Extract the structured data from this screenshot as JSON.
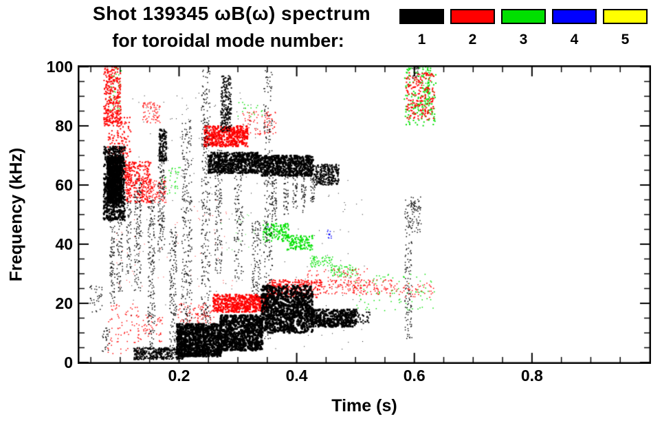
{
  "header": {
    "title_line1": "Shot 139345 ωB(ω) spectrum",
    "title_line2": "for toroidal mode number:"
  },
  "legend": {
    "position": "top-right",
    "items": [
      {
        "label": "1",
        "color": "#000000"
      },
      {
        "label": "2",
        "color": "#ff0000"
      },
      {
        "label": "3",
        "color": "#00e000"
      },
      {
        "label": "4",
        "color": "#0000ff"
      },
      {
        "label": "5",
        "color": "#ffff00"
      }
    ]
  },
  "chart_data": {
    "type": "scatter",
    "subtype": "mode-spectrogram",
    "title": "Shot 139345 ωB(ω) spectrum for toroidal mode number: 1-5",
    "xlabel": "Time (s)",
    "ylabel": "Frequency (kHz)",
    "xlim": [
      0.03,
      1.0
    ],
    "ylim": [
      0,
      100
    ],
    "xticks": [
      0.2,
      0.4,
      0.6,
      0.8
    ],
    "xtick_labels": [
      "0.2",
      "0.4",
      "0.6",
      "0.8"
    ],
    "yticks": [
      0,
      20,
      40,
      60,
      80,
      100
    ],
    "ytick_labels": [
      "0",
      "20",
      "40",
      "60",
      "80",
      "100"
    ],
    "xminor": 0.05,
    "yminor": 5,
    "grid": false,
    "cluster_format": [
      "t_min_s",
      "t_max_s",
      "f_min_kHz",
      "f_max_kHz",
      "n_points",
      "point_size_px"
    ],
    "series": [
      {
        "name": "n=1",
        "mode": 1,
        "color": "#000000",
        "clusters": [
          [
            0.072,
            0.108,
            48,
            73,
            700,
            2.5
          ],
          [
            0.078,
            0.102,
            54,
            70,
            600,
            3
          ],
          [
            0.082,
            0.091,
            20,
            50,
            90,
            1.5
          ],
          [
            0.094,
            0.104,
            24,
            50,
            70,
            1.5
          ],
          [
            0.111,
            0.119,
            30,
            56,
            60,
            1.5
          ],
          [
            0.124,
            0.136,
            24,
            62,
            130,
            1.5
          ],
          [
            0.147,
            0.159,
            5,
            56,
            170,
            1.5
          ],
          [
            0.164,
            0.176,
            36,
            70,
            140,
            1.5
          ],
          [
            0.166,
            0.179,
            68,
            79,
            170,
            2
          ],
          [
            0.184,
            0.196,
            4,
            46,
            150,
            1.5
          ],
          [
            0.204,
            0.222,
            3,
            82,
            280,
            1.5
          ],
          [
            0.238,
            0.253,
            5,
            100,
            300,
            1.5
          ],
          [
            0.261,
            0.273,
            30,
            72,
            130,
            1.5
          ],
          [
            0.271,
            0.289,
            78,
            97,
            200,
            2
          ],
          [
            0.294,
            0.309,
            28,
            70,
            120,
            1.5
          ],
          [
            0.324,
            0.339,
            22,
            48,
            100,
            1.5
          ],
          [
            0.344,
            0.359,
            8,
            100,
            220,
            1.5
          ],
          [
            0.25,
            0.335,
            64,
            71,
            650,
            2.5
          ],
          [
            0.335,
            0.428,
            63,
            70,
            750,
            2.5
          ],
          [
            0.358,
            0.366,
            48,
            64,
            55,
            1.5
          ],
          [
            0.378,
            0.386,
            50,
            64,
            45,
            1.5
          ],
          [
            0.393,
            0.401,
            52,
            64,
            40,
            1.5
          ],
          [
            0.408,
            0.416,
            50,
            64,
            40,
            1.5
          ],
          [
            0.423,
            0.431,
            54,
            65,
            35,
            1.5
          ],
          [
            0.428,
            0.472,
            60,
            67,
            280,
            2
          ],
          [
            0.196,
            0.272,
            2,
            13,
            850,
            3
          ],
          [
            0.27,
            0.342,
            4,
            16,
            800,
            3
          ],
          [
            0.34,
            0.427,
            10,
            26,
            950,
            3
          ],
          [
            0.425,
            0.502,
            12,
            18,
            500,
            2.5
          ],
          [
            0.123,
            0.207,
            1,
            5,
            380,
            2
          ],
          [
            0.205,
            0.252,
            2,
            6,
            140,
            2
          ],
          [
            0.048,
            0.072,
            17,
            26,
            35,
            1.5
          ],
          [
            0.068,
            0.082,
            3,
            12,
            30,
            1.5
          ],
          [
            0.584,
            0.596,
            8,
            55,
            130,
            1.5
          ],
          [
            0.594,
            0.612,
            44,
            56,
            70,
            1.5
          ],
          [
            0.597,
            0.607,
            96,
            101,
            25,
            1.5
          ],
          [
            0.47,
            0.525,
            13,
            17,
            90,
            2
          ],
          [
            0.1,
            0.52,
            4,
            62,
            160,
            1
          ],
          [
            0.12,
            0.35,
            62,
            92,
            80,
            1
          ]
        ]
      },
      {
        "name": "n=2",
        "mode": 2,
        "color": "#ff0000",
        "clusters": [
          [
            0.072,
            0.101,
            80,
            101,
            320,
            2
          ],
          [
            0.079,
            0.118,
            60,
            83,
            220,
            2
          ],
          [
            0.108,
            0.152,
            54,
            68,
            260,
            2
          ],
          [
            0.138,
            0.168,
            81,
            88,
            70,
            1.5
          ],
          [
            0.144,
            0.178,
            54,
            62,
            130,
            1.5
          ],
          [
            0.243,
            0.317,
            73,
            80,
            420,
            2.5
          ],
          [
            0.308,
            0.365,
            77,
            85,
            90,
            1.5
          ],
          [
            0.258,
            0.352,
            17,
            23,
            480,
            2.5
          ],
          [
            0.35,
            0.442,
            22,
            28,
            260,
            2
          ],
          [
            0.44,
            0.562,
            23,
            28,
            160,
            1.5
          ],
          [
            0.558,
            0.634,
            22,
            27,
            55,
            1.5
          ],
          [
            0.586,
            0.634,
            82,
            98,
            190,
            2
          ],
          [
            0.078,
            0.132,
            3,
            20,
            80,
            1.5
          ],
          [
            0.128,
            0.172,
            7,
            16,
            55,
            1.5
          ],
          [
            0.198,
            0.26,
            13,
            20,
            100,
            1.5
          ],
          [
            0.418,
            0.522,
            26,
            32,
            70,
            1.5
          ],
          [
            0.09,
            0.3,
            25,
            55,
            60,
            1
          ]
        ]
      },
      {
        "name": "n=3",
        "mode": 3,
        "color": "#00e000",
        "clusters": [
          [
            0.082,
            0.102,
            85,
            101,
            55,
            1.5
          ],
          [
            0.168,
            0.202,
            57,
            66,
            35,
            1.5
          ],
          [
            0.343,
            0.387,
            41,
            47,
            140,
            2
          ],
          [
            0.383,
            0.427,
            38,
            43,
            130,
            2
          ],
          [
            0.423,
            0.462,
            32,
            36,
            70,
            1.5
          ],
          [
            0.458,
            0.502,
            29,
            33,
            70,
            1.5
          ],
          [
            0.498,
            0.634,
            17,
            30,
            90,
            1.5
          ],
          [
            0.583,
            0.637,
            80,
            101,
            150,
            2
          ],
          [
            0.613,
            0.627,
            84,
            100,
            90,
            1.5
          ],
          [
            0.298,
            0.342,
            83,
            88,
            18,
            1.5
          ],
          [
            0.27,
            0.35,
            38,
            52,
            20,
            1
          ]
        ]
      },
      {
        "name": "n=4",
        "mode": 4,
        "color": "#0000ff",
        "clusters": [
          [
            0.451,
            0.459,
            42,
            45,
            12,
            1.5
          ],
          [
            0.348,
            0.356,
            43,
            46,
            6,
            1.5
          ]
        ]
      },
      {
        "name": "n=5",
        "mode": 5,
        "color": "#ffff00",
        "clusters": []
      }
    ]
  }
}
